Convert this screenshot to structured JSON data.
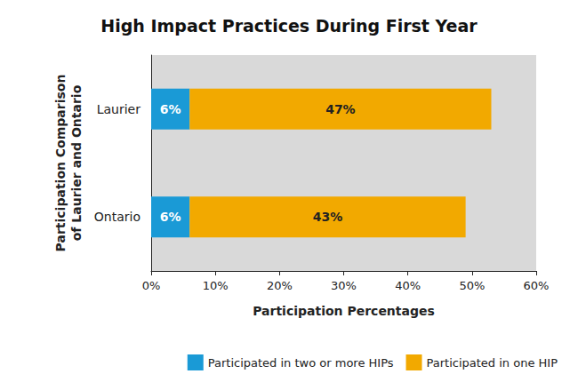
{
  "chart_data": {
    "type": "bar",
    "orientation": "horizontal",
    "stacked": true,
    "data_labels": true,
    "grid": false,
    "legend": "bottom",
    "title": "High Impact Practices During First Year",
    "x_label": "Participation Percentages",
    "y_label": "Participation Comparison\nof Laurier and Ontario",
    "categories": [
      "Laurier",
      "Ontario"
    ],
    "series": [
      {
        "name": "Participated in two or more HIPs",
        "color": "#1a9ad6",
        "values": [
          6,
          6
        ],
        "value_labels": [
          "6%",
          "6%"
        ]
      },
      {
        "name": "Participated in one HIP",
        "color": "#f2a900",
        "values": [
          47,
          43
        ],
        "value_labels": [
          "47%",
          "43%"
        ]
      }
    ],
    "xlim": [
      0,
      60
    ],
    "xticks": [
      {
        "value": 0,
        "label": "0%"
      },
      {
        "value": 10,
        "label": "10%"
      },
      {
        "value": 20,
        "label": "20%"
      },
      {
        "value": 30,
        "label": "30%"
      },
      {
        "value": 40,
        "label": "40%"
      },
      {
        "value": 50,
        "label": "50%"
      },
      {
        "value": 60,
        "label": "60%"
      }
    ]
  }
}
